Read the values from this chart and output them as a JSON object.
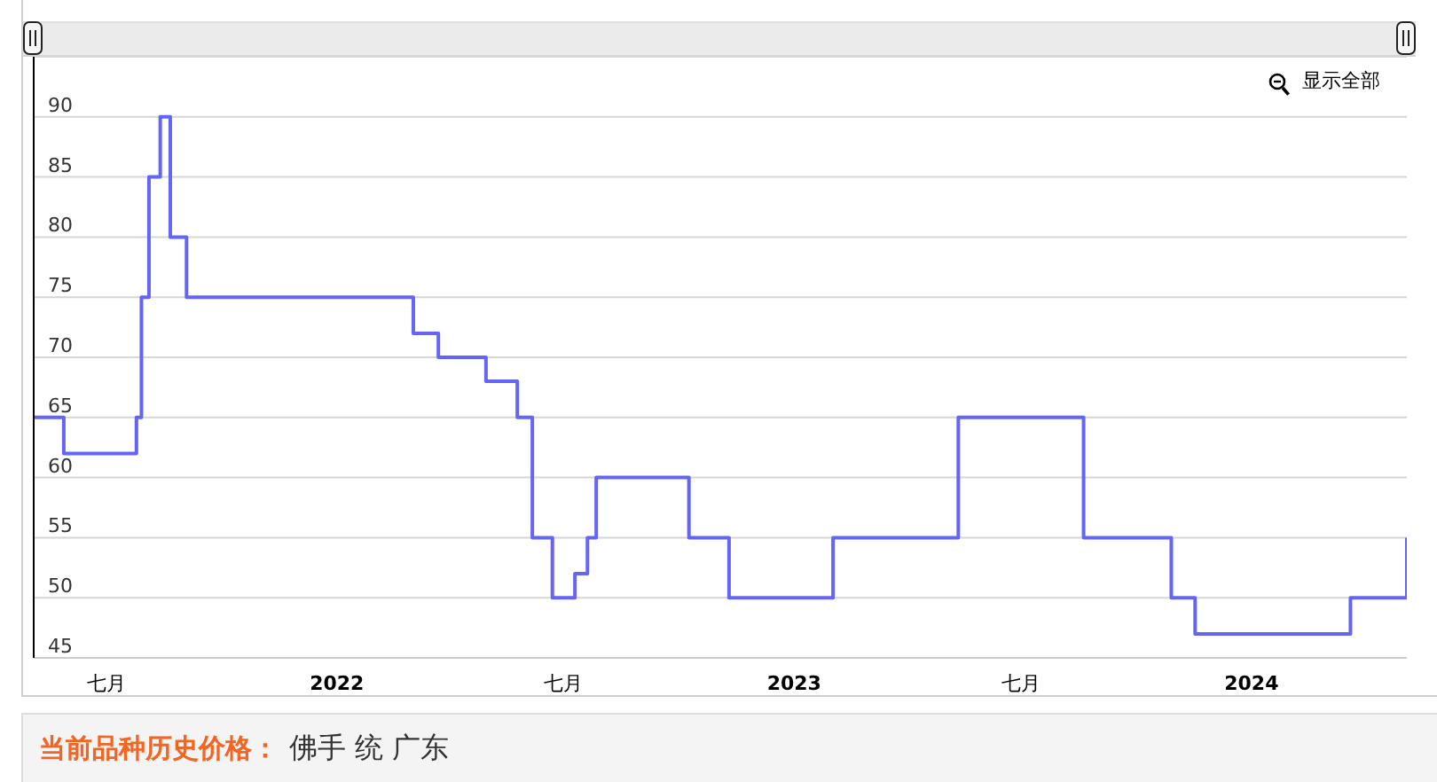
{
  "chart_data": {
    "type": "step",
    "title": "当前品种历史价格：",
    "subtitle": "佛手 统 广东",
    "annotations": [
      "显示全部"
    ],
    "x": [
      "2021-05-04",
      "2021-05-28",
      "2021-07-25",
      "2021-07-29",
      "2021-08-04",
      "2021-08-13",
      "2021-08-21",
      "2021-09-03",
      "2022-03-03",
      "2022-03-23",
      "2022-04-30",
      "2022-05-25",
      "2022-06-06",
      "2022-06-22",
      "2022-07-10",
      "2022-07-20",
      "2022-07-27",
      "2022-10-09",
      "2022-11-10",
      "2023-02-01",
      "2023-05-12",
      "2023-08-20",
      "2023-10-29",
      "2023-11-17",
      "2024-03-20",
      "2024-05-04"
    ],
    "values": [
      65,
      62,
      65,
      75,
      85,
      90,
      80,
      75,
      72,
      70,
      68,
      65,
      55,
      50,
      52,
      55,
      60,
      55,
      50,
      55,
      65,
      55,
      50,
      47,
      50,
      55
    ],
    "color": "#6464f5",
    "xlim": [
      "2021-05-04",
      "2024-05-04"
    ],
    "xticks": [
      {
        "value": "2021-07-01",
        "label": "七月"
      },
      {
        "value": "2022-01-01",
        "label": "2022"
      },
      {
        "value": "2022-07-01",
        "label": "七月"
      },
      {
        "value": "2023-01-01",
        "label": "2023"
      },
      {
        "value": "2023-07-01",
        "label": "七月"
      },
      {
        "value": "2024-01-01",
        "label": "2024"
      }
    ],
    "ylim": [
      45,
      95
    ],
    "yticks": [
      45,
      50,
      55,
      60,
      65,
      70,
      75,
      80,
      85,
      90
    ],
    "grid": "y"
  }
}
